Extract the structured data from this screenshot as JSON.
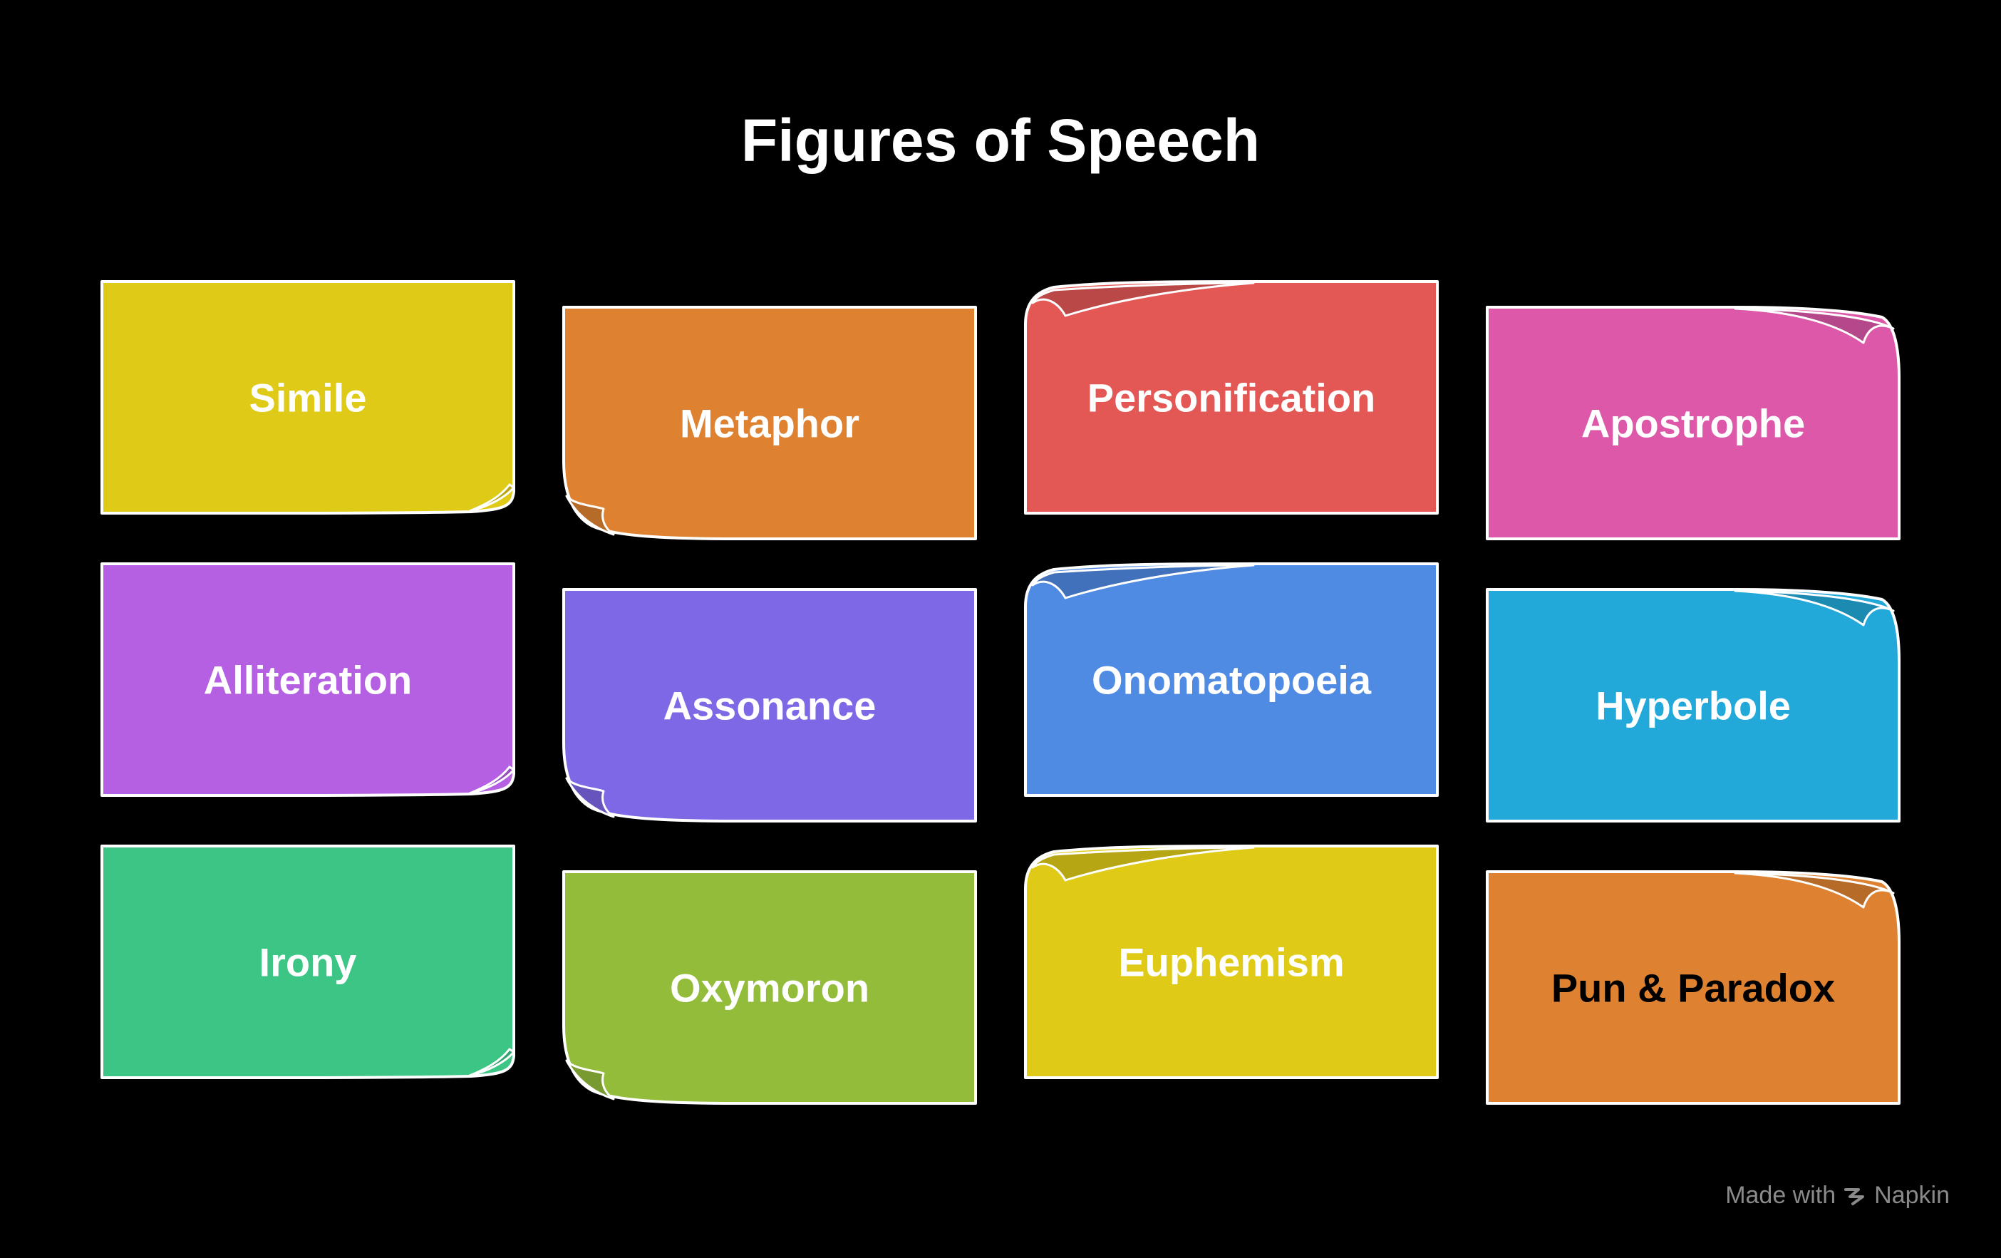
{
  "title": "Figures of Speech",
  "cards": [
    {
      "label": "Simile",
      "fill": "#DFCB17",
      "textColor": "#ffffff",
      "curl": "br"
    },
    {
      "label": "Metaphor",
      "fill": "#DE8231",
      "textColor": "#ffffff",
      "curl": "bl"
    },
    {
      "label": "Personification",
      "fill": "#E35855",
      "textColor": "#ffffff",
      "curl": "tl"
    },
    {
      "label": "Apostrophe",
      "fill": "#DD58A8",
      "textColor": "#ffffff",
      "curl": "tr"
    },
    {
      "label": "Alliteration",
      "fill": "#B55FE3",
      "textColor": "#ffffff",
      "curl": "br"
    },
    {
      "label": "Assonance",
      "fill": "#7E68E6",
      "textColor": "#ffffff",
      "curl": "bl"
    },
    {
      "label": "Onomatopoeia",
      "fill": "#4F8AE3",
      "textColor": "#ffffff",
      "curl": "tl"
    },
    {
      "label": "Hyperbole",
      "fill": "#22A9D9",
      "textColor": "#ffffff",
      "curl": "tr"
    },
    {
      "label": "Irony",
      "fill": "#3DC586",
      "textColor": "#ffffff",
      "curl": "br"
    },
    {
      "label": "Oxymoron",
      "fill": "#93BC3B",
      "textColor": "#ffffff",
      "curl": "bl"
    },
    {
      "label": "Euphemism",
      "fill": "#DFCB17",
      "textColor": "#ffffff",
      "curl": "tl"
    },
    {
      "label": "Pun & Paradox",
      "fill": "#DE8231",
      "textColor": "#000000",
      "curl": "tr"
    }
  ],
  "watermark": {
    "text": "Made with",
    "brand": "Napkin",
    "icon": "napkin-logo-icon"
  }
}
